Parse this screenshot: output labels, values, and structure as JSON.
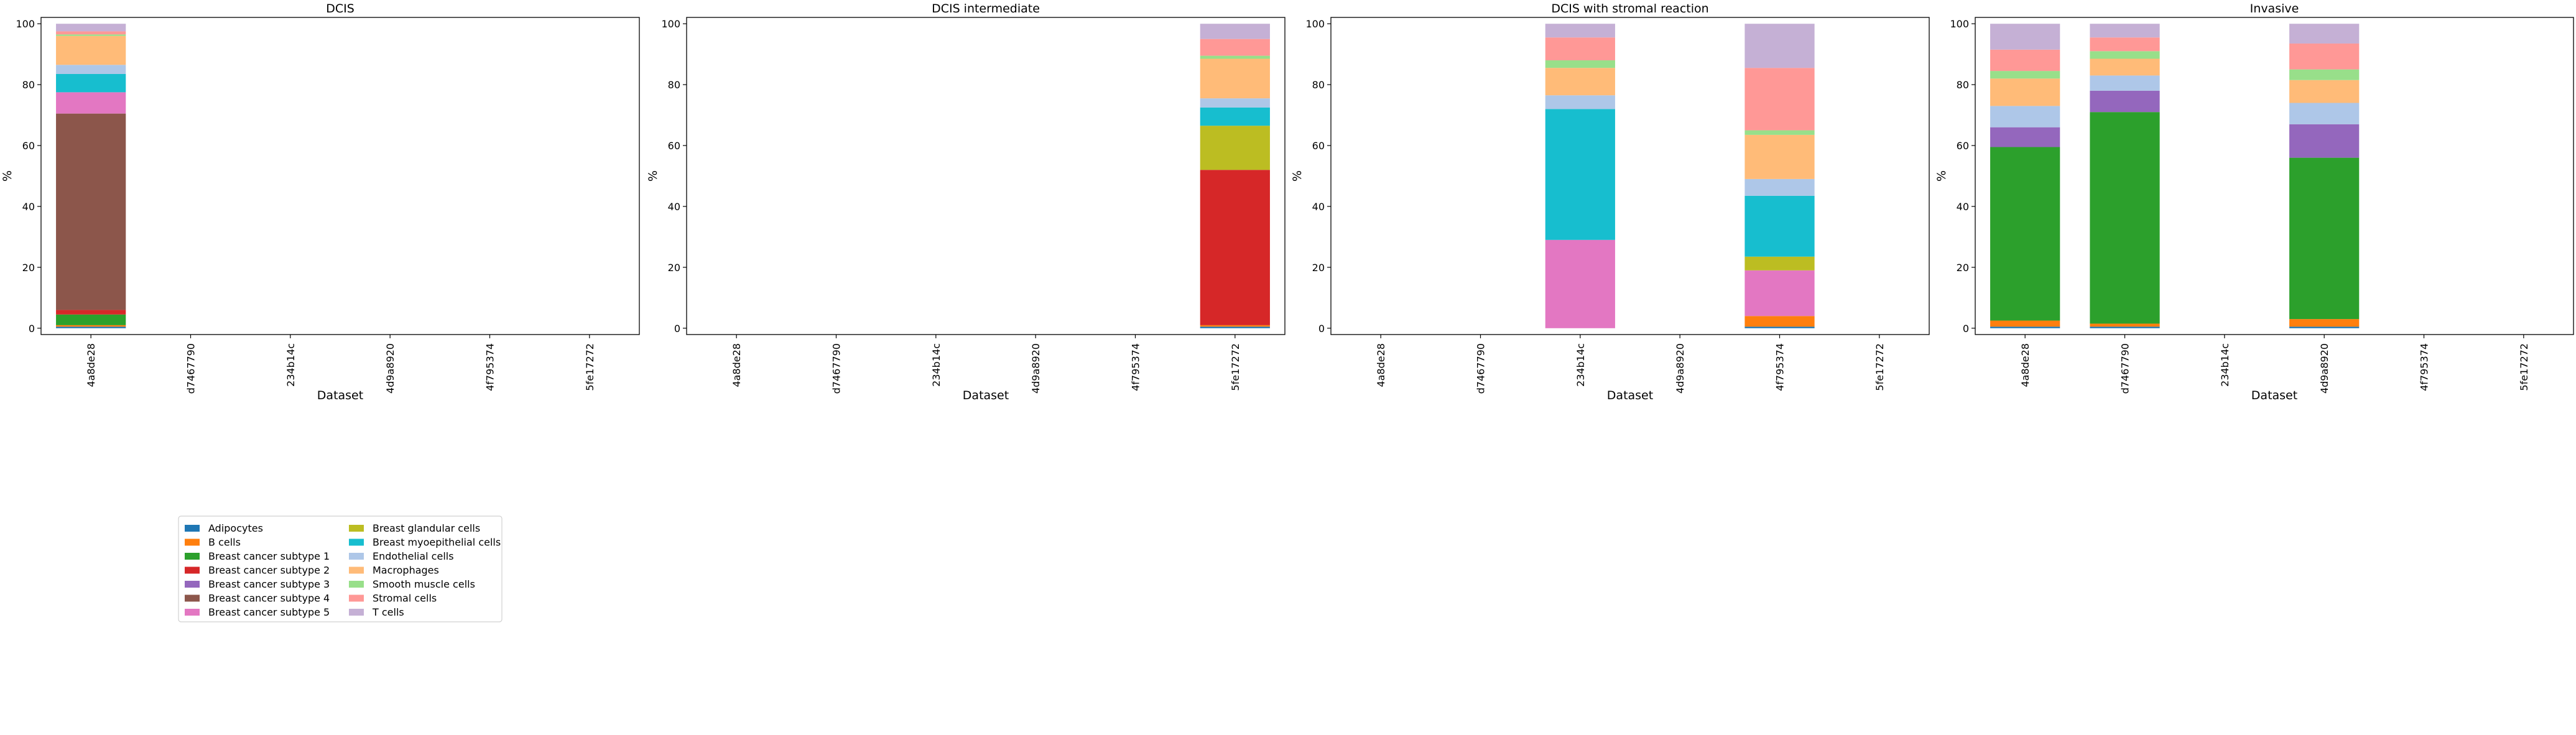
{
  "chart_data": {
    "type": "bar",
    "stacked": true,
    "ylabel": "%",
    "xlabel": "Dataset",
    "ylim": [
      0,
      100
    ],
    "yticks": [
      0,
      20,
      40,
      60,
      80,
      100
    ],
    "categories": [
      "4a8de28",
      "d7467790",
      "234b14c",
      "4d9a8920",
      "4f795374",
      "5fe17272"
    ],
    "grid": false,
    "legend_placement": "bottom-left",
    "cell_types": [
      {
        "name": "Adipocytes",
        "color": "#1f77b4"
      },
      {
        "name": "B cells",
        "color": "#ff7f0e"
      },
      {
        "name": "Breast cancer subtype 1",
        "color": "#2ca02c"
      },
      {
        "name": "Breast cancer subtype 2",
        "color": "#d62728"
      },
      {
        "name": "Breast cancer subtype 3",
        "color": "#9467bd"
      },
      {
        "name": "Breast cancer subtype 4",
        "color": "#8c564b"
      },
      {
        "name": "Breast cancer subtype 5",
        "color": "#e377c2"
      },
      {
        "name": "Breast glandular cells",
        "color": "#bcbd22"
      },
      {
        "name": "Breast myoepithelial cells",
        "color": "#17becf"
      },
      {
        "name": "Endothelial cells",
        "color": "#aec7e8"
      },
      {
        "name": "Macrophages",
        "color": "#ffbb78"
      },
      {
        "name": "Smooth muscle cells",
        "color": "#98df8a"
      },
      {
        "name": "Stromal cells",
        "color": "#ff9896"
      },
      {
        "name": "T cells",
        "color": "#c5b0d5"
      }
    ],
    "panels": [
      {
        "title": "DCIS",
        "values": [
          [
            0.5,
            0.5,
            3.5,
            1.5,
            0.0,
            64.5,
            7.0,
            0.0,
            6.0,
            3.0,
            9.5,
            0.5,
            1.0,
            2.5
          ],
          null,
          null,
          null,
          null,
          null
        ]
      },
      {
        "title": "DCIS intermediate",
        "values": [
          null,
          null,
          null,
          null,
          null,
          [
            0.5,
            0.5,
            0.0,
            51.0,
            0.0,
            0.0,
            0.0,
            14.5,
            6.0,
            3.0,
            13.0,
            1.0,
            5.5,
            5.0
          ]
        ]
      },
      {
        "title": "DCIS with stromal reaction",
        "values": [
          null,
          null,
          [
            0.0,
            0.0,
            0.0,
            0.0,
            0.0,
            0.0,
            29.0,
            0.0,
            43.0,
            4.5,
            9.0,
            2.5,
            7.5,
            4.5
          ],
          null,
          [
            0.5,
            3.5,
            0.0,
            0.0,
            0.0,
            0.0,
            15.0,
            4.5,
            20.0,
            5.5,
            14.5,
            1.5,
            20.5,
            14.5
          ],
          null
        ]
      },
      {
        "title": "Invasive",
        "values": [
          [
            0.5,
            2.0,
            57.0,
            0.0,
            6.5,
            0.0,
            0.0,
            0.0,
            0.0,
            7.0,
            9.0,
            2.5,
            7.0,
            8.5
          ],
          [
            0.5,
            1.0,
            69.5,
            0.0,
            7.0,
            0.0,
            0.0,
            0.0,
            0.0,
            5.0,
            5.5,
            2.5,
            4.5,
            4.5
          ],
          null,
          [
            0.5,
            2.5,
            53.0,
            0.0,
            11.0,
            0.0,
            0.0,
            0.0,
            0.0,
            7.0,
            7.5,
            3.5,
            8.5,
            6.5
          ],
          null,
          null
        ]
      }
    ]
  }
}
